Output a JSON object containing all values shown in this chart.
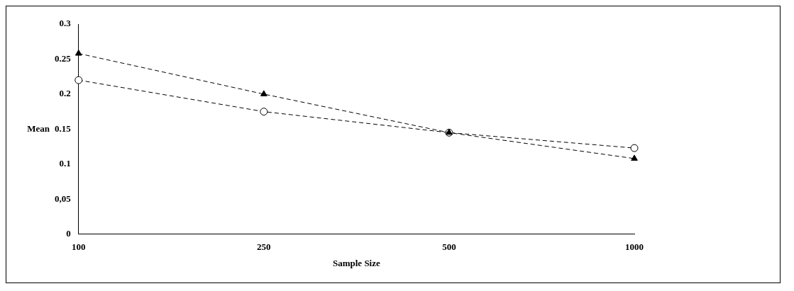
{
  "chart_data": {
    "type": "line",
    "xlabel": "Sample Size",
    "ylabel": "Mean",
    "categories": [
      "100",
      "250",
      "500",
      "1000"
    ],
    "series": [
      {
        "color": "#000000",
        "values": [
          0.258,
          0.2,
          0.145,
          0.108
        ],
        "marker": "triangle"
      },
      {
        "color": "#000000",
        "values": [
          0.22,
          0.175,
          0.145,
          0.123
        ],
        "marker": "circle"
      }
    ],
    "ylim": [
      0,
      0.3
    ],
    "yticks": [
      0,
      {
        "value": 0.05,
        "label": "0,05"
      },
      0.1,
      0.15,
      0.2,
      0.25,
      0.3
    ],
    "grid": false,
    "legend": false,
    "line_style": "dashed"
  }
}
